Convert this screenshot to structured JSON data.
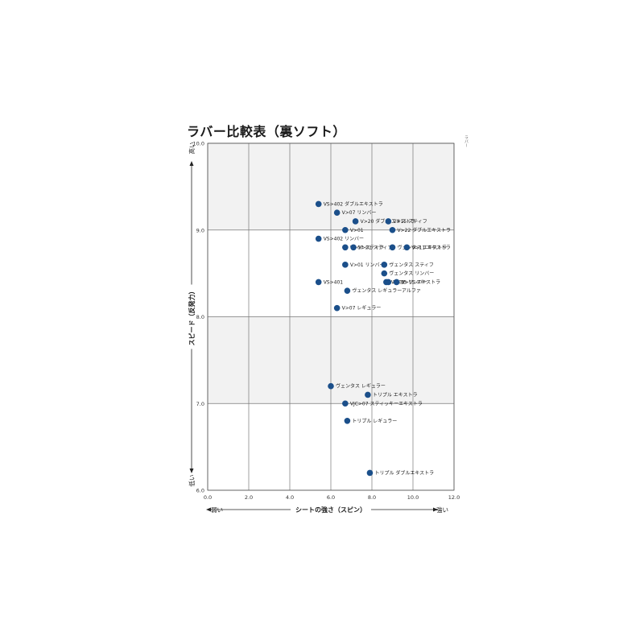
{
  "page": {
    "title": "ラバー比較表（裏ソフト）",
    "corner_note": "ラバー"
  },
  "chart_data": {
    "type": "scatter",
    "title": "ラバー比較表（裏ソフト）",
    "xlabel": "シートの強さ（スピン）",
    "ylabel": "スピード（反発力）",
    "x_low": "弱い",
    "x_high": "強い",
    "y_low": "低い",
    "y_high": "高い",
    "xlim": [
      0,
      12
    ],
    "ylim": [
      6,
      10
    ],
    "xticks": [
      "0.0",
      "2.0",
      "4.0",
      "6.0",
      "8.0",
      "10.0",
      "12.0"
    ],
    "yticks": [
      "6.0",
      "7.0",
      "8.0",
      "9.0",
      "10.0"
    ],
    "grid": true,
    "band_color": "#f2f2f2",
    "point_color": "#1b4f8a",
    "points": [
      {
        "label": "VS>402 ダブルエキストラ",
        "x": 5.4,
        "y": 9.3
      },
      {
        "label": "V>07 リンバー",
        "x": 6.3,
        "y": 9.2
      },
      {
        "label": "V>20 ダブル エキストラ",
        "x": 7.2,
        "y": 9.1
      },
      {
        "label": "V>15 スティフ",
        "x": 8.8,
        "y": 9.1
      },
      {
        "label": "V>01",
        "x": 6.7,
        "y": 9.0
      },
      {
        "label": "V>22 ダブルエキストラ",
        "x": 9.0,
        "y": 9.0
      },
      {
        "label": "VS>402 リンバー",
        "x": 5.4,
        "y": 8.9
      },
      {
        "label": "V>07 スティフ",
        "x": 6.7,
        "y": 8.8
      },
      {
        "label": "V>01 スティフ",
        "x": 7.1,
        "y": 8.8
      },
      {
        "label": "ヴェンタス エキストラ",
        "x": 9.0,
        "y": 8.8
      },
      {
        "label": "V>11 エキストラ",
        "x": 9.7,
        "y": 8.8
      },
      {
        "label": "V>01 リンバー",
        "x": 6.7,
        "y": 8.6
      },
      {
        "label": "ヴェンタス スティフ",
        "x": 8.6,
        "y": 8.6
      },
      {
        "label": "ヴェンタス リンバー",
        "x": 8.6,
        "y": 8.5
      },
      {
        "label": "VS>401",
        "x": 5.4,
        "y": 8.4
      },
      {
        "label": "V>03",
        "x": 8.7,
        "y": 8.4
      },
      {
        "label": "V>15 リンバー",
        "x": 8.8,
        "y": 8.4
      },
      {
        "label": "V>15 エキストラ",
        "x": 9.2,
        "y": 8.4
      },
      {
        "label": "ヴェンタス レギュラーアルファ",
        "x": 6.8,
        "y": 8.3
      },
      {
        "label": "V>07 レギュラー",
        "x": 6.3,
        "y": 8.1
      },
      {
        "label": "ヴェンタス レギュラー",
        "x": 6.0,
        "y": 7.2
      },
      {
        "label": "トリプル エキストラ",
        "x": 7.8,
        "y": 7.1
      },
      {
        "label": "VJC>07 スティッキーエキストラ",
        "x": 6.7,
        "y": 7.0
      },
      {
        "label": "トリプル レギュラー",
        "x": 6.8,
        "y": 6.8
      },
      {
        "label": "トリプル ダブルエキストラ",
        "x": 7.9,
        "y": 6.2
      }
    ]
  }
}
